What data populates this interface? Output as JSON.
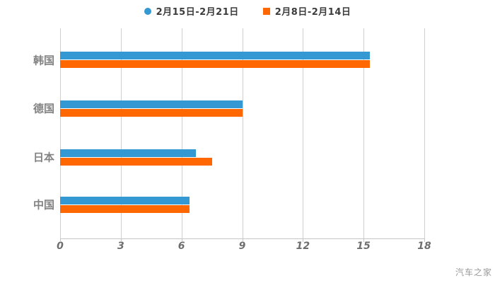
{
  "legend": {
    "items": [
      {
        "label": "2月15日-2月21日",
        "marker": "circle",
        "color": "#3498d2"
      },
      {
        "label": "2月8日-2月14日",
        "marker": "square",
        "color": "#ff6702"
      }
    ]
  },
  "chart_data": {
    "type": "bar",
    "orientation": "horizontal",
    "title": "",
    "xlabel": "",
    "ylabel": "",
    "categories": [
      "韩国",
      "德国",
      "日本",
      "中国"
    ],
    "series": [
      {
        "name": "2月15日-2月21日",
        "color": "#3498d2",
        "values": [
          15.3,
          9.0,
          6.7,
          6.4
        ]
      },
      {
        "name": "2月8日-2月14日",
        "color": "#ff6702",
        "values": [
          15.3,
          9.0,
          7.5,
          6.4
        ]
      }
    ],
    "xlim": [
      0,
      18
    ],
    "xticks": [
      0,
      3,
      6,
      9,
      12,
      15,
      18
    ],
    "grid": true,
    "legend_position": "top"
  },
  "colors": {
    "background": "#ffffff",
    "gridline": "#cfcfcf",
    "axis_label": "#6e6e6e",
    "category_label": "#828282",
    "legend_text": "#3c3c3c"
  },
  "watermark": "汽车之家"
}
